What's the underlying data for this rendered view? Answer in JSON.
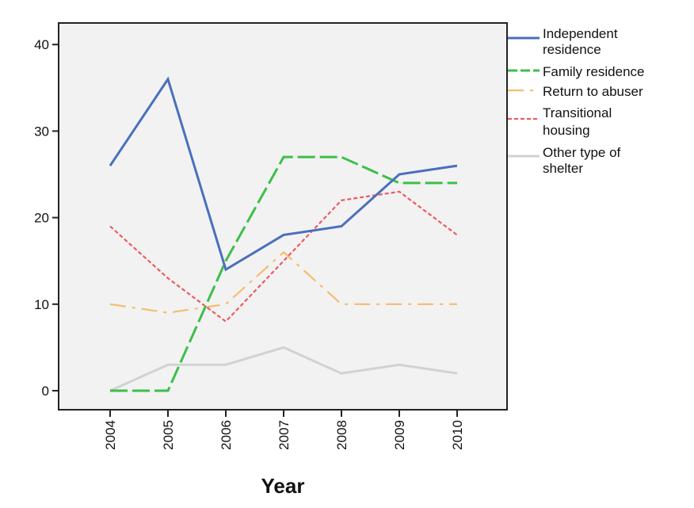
{
  "chart_data": {
    "type": "line",
    "title": "",
    "xlabel": "Year",
    "ylabel": "",
    "categories": [
      "2004",
      "2005",
      "2006",
      "2007",
      "2008",
      "2009",
      "2010"
    ],
    "yticks": [
      0,
      10,
      20,
      30,
      40
    ],
    "ylim": [
      -2,
      42.5
    ],
    "grid": false,
    "legend_position": "right",
    "background": "#f2f2f2",
    "series": [
      {
        "name": "Independent residence",
        "legend_lines": [
          "Independent",
          "residence"
        ],
        "color": "#4a6fbd",
        "dash": "",
        "width": 3,
        "values": [
          26,
          36,
          14,
          18,
          19,
          25,
          26
        ]
      },
      {
        "name": "Family residence",
        "legend_lines": [
          "Family residence"
        ],
        "color": "#3cbf4a",
        "dash": "22 6",
        "width": 3,
        "values": [
          0,
          0,
          15,
          27,
          27,
          24,
          24
        ]
      },
      {
        "name": "Return to abuser",
        "legend_lines": [
          "Return to abuser"
        ],
        "color": "#f5bc6e",
        "dash": "20 8 4 8",
        "width": 2.2,
        "values": [
          10,
          9,
          10,
          16,
          10,
          10,
          10
        ]
      },
      {
        "name": "Transitional housing",
        "legend_lines": [
          "Transitional",
          "housing"
        ],
        "color": "#ec5b63",
        "dash": "5 3",
        "width": 2.2,
        "values": [
          19,
          13,
          8,
          15,
          22,
          23,
          18
        ]
      },
      {
        "name": "Other type of shelter",
        "legend_lines": [
          "Other type of",
          "shelter"
        ],
        "color": "#d2d2d2",
        "dash": "",
        "width": 3,
        "values": [
          0,
          3,
          3,
          5,
          2,
          3,
          2
        ]
      }
    ]
  }
}
